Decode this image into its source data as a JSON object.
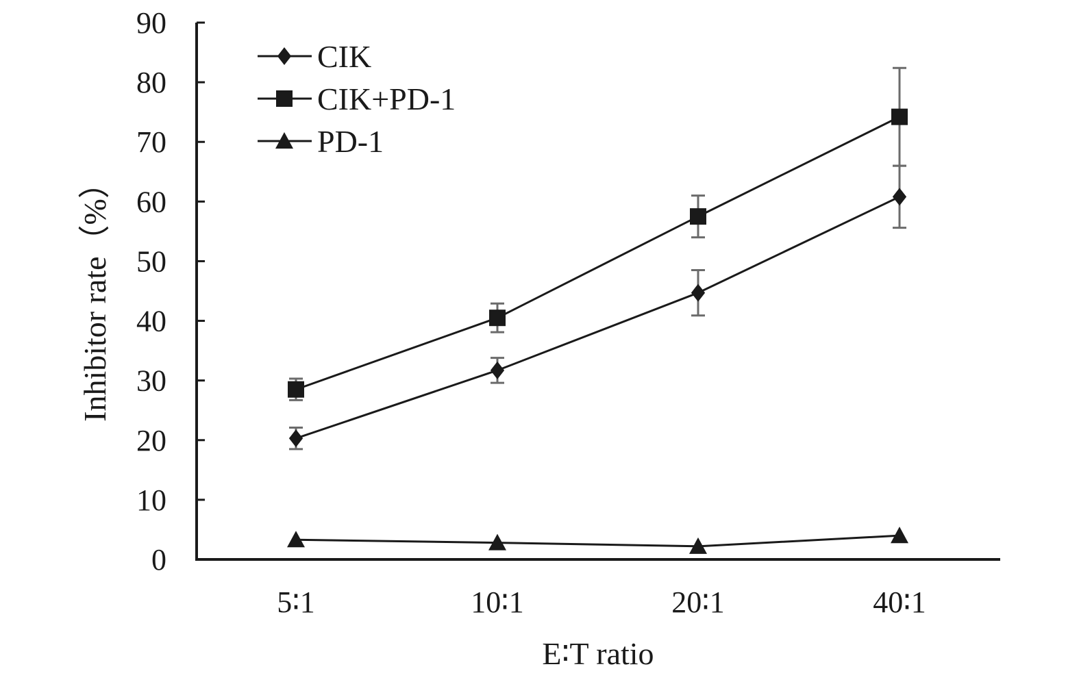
{
  "chart_data": {
    "type": "line",
    "title": "",
    "xlabel": "E∶T ratio",
    "ylabel": "Inhibitor rate（%）",
    "categories": [
      "5∶1",
      "10∶1",
      "20∶1",
      "40∶1"
    ],
    "ylim": [
      0,
      90
    ],
    "yticks": [
      0,
      10,
      20,
      30,
      40,
      50,
      60,
      70,
      80,
      90
    ],
    "grid": false,
    "legend_position": "top-left",
    "series": [
      {
        "name": "CIK",
        "marker": "diamond",
        "values": [
          20.3,
          31.7,
          44.7,
          60.8
        ],
        "errors": [
          1.8,
          2.1,
          3.8,
          5.2
        ]
      },
      {
        "name": "CIK+PD-1",
        "marker": "square",
        "values": [
          28.5,
          40.5,
          57.5,
          74.2
        ],
        "errors": [
          1.8,
          2.4,
          3.5,
          8.2
        ]
      },
      {
        "name": "PD-1",
        "marker": "triangle",
        "values": [
          3.3,
          2.8,
          2.2,
          4.0
        ],
        "errors": [
          0,
          0,
          0,
          0
        ]
      }
    ],
    "colors": {
      "line": "#1a1a1a",
      "marker": "#1a1a1a",
      "error_bar": "#6b6b6b",
      "axis": "#1a1a1a"
    }
  }
}
